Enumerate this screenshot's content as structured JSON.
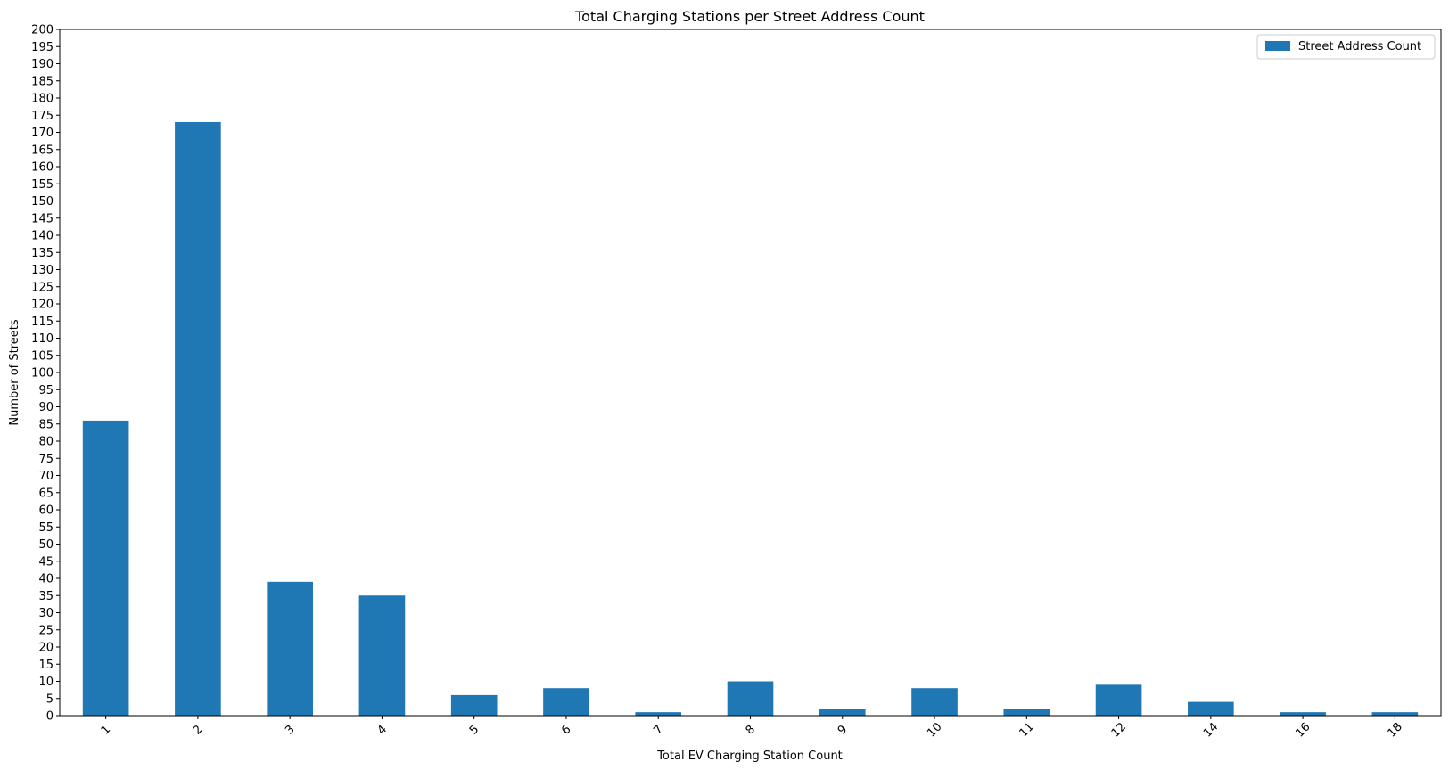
{
  "chart_data": {
    "type": "bar",
    "title": "Total Charging Stations per Street Address Count",
    "xlabel": "Total EV Charging Station Count",
    "ylabel": "Number of Streets",
    "categories": [
      "1",
      "2",
      "3",
      "4",
      "5",
      "6",
      "7",
      "8",
      "9",
      "10",
      "11",
      "12",
      "14",
      "16",
      "18"
    ],
    "series": [
      {
        "name": "Street Address Count",
        "color": "#1f77b4",
        "values": [
          86,
          173,
          39,
          35,
          6,
          8,
          1,
          10,
          2,
          8,
          2,
          9,
          4,
          1,
          1
        ]
      }
    ],
    "ylim": [
      0,
      200
    ],
    "ytick_step": 5,
    "xtick_rotation": -45,
    "grid": false,
    "legend_position": "top-right"
  }
}
